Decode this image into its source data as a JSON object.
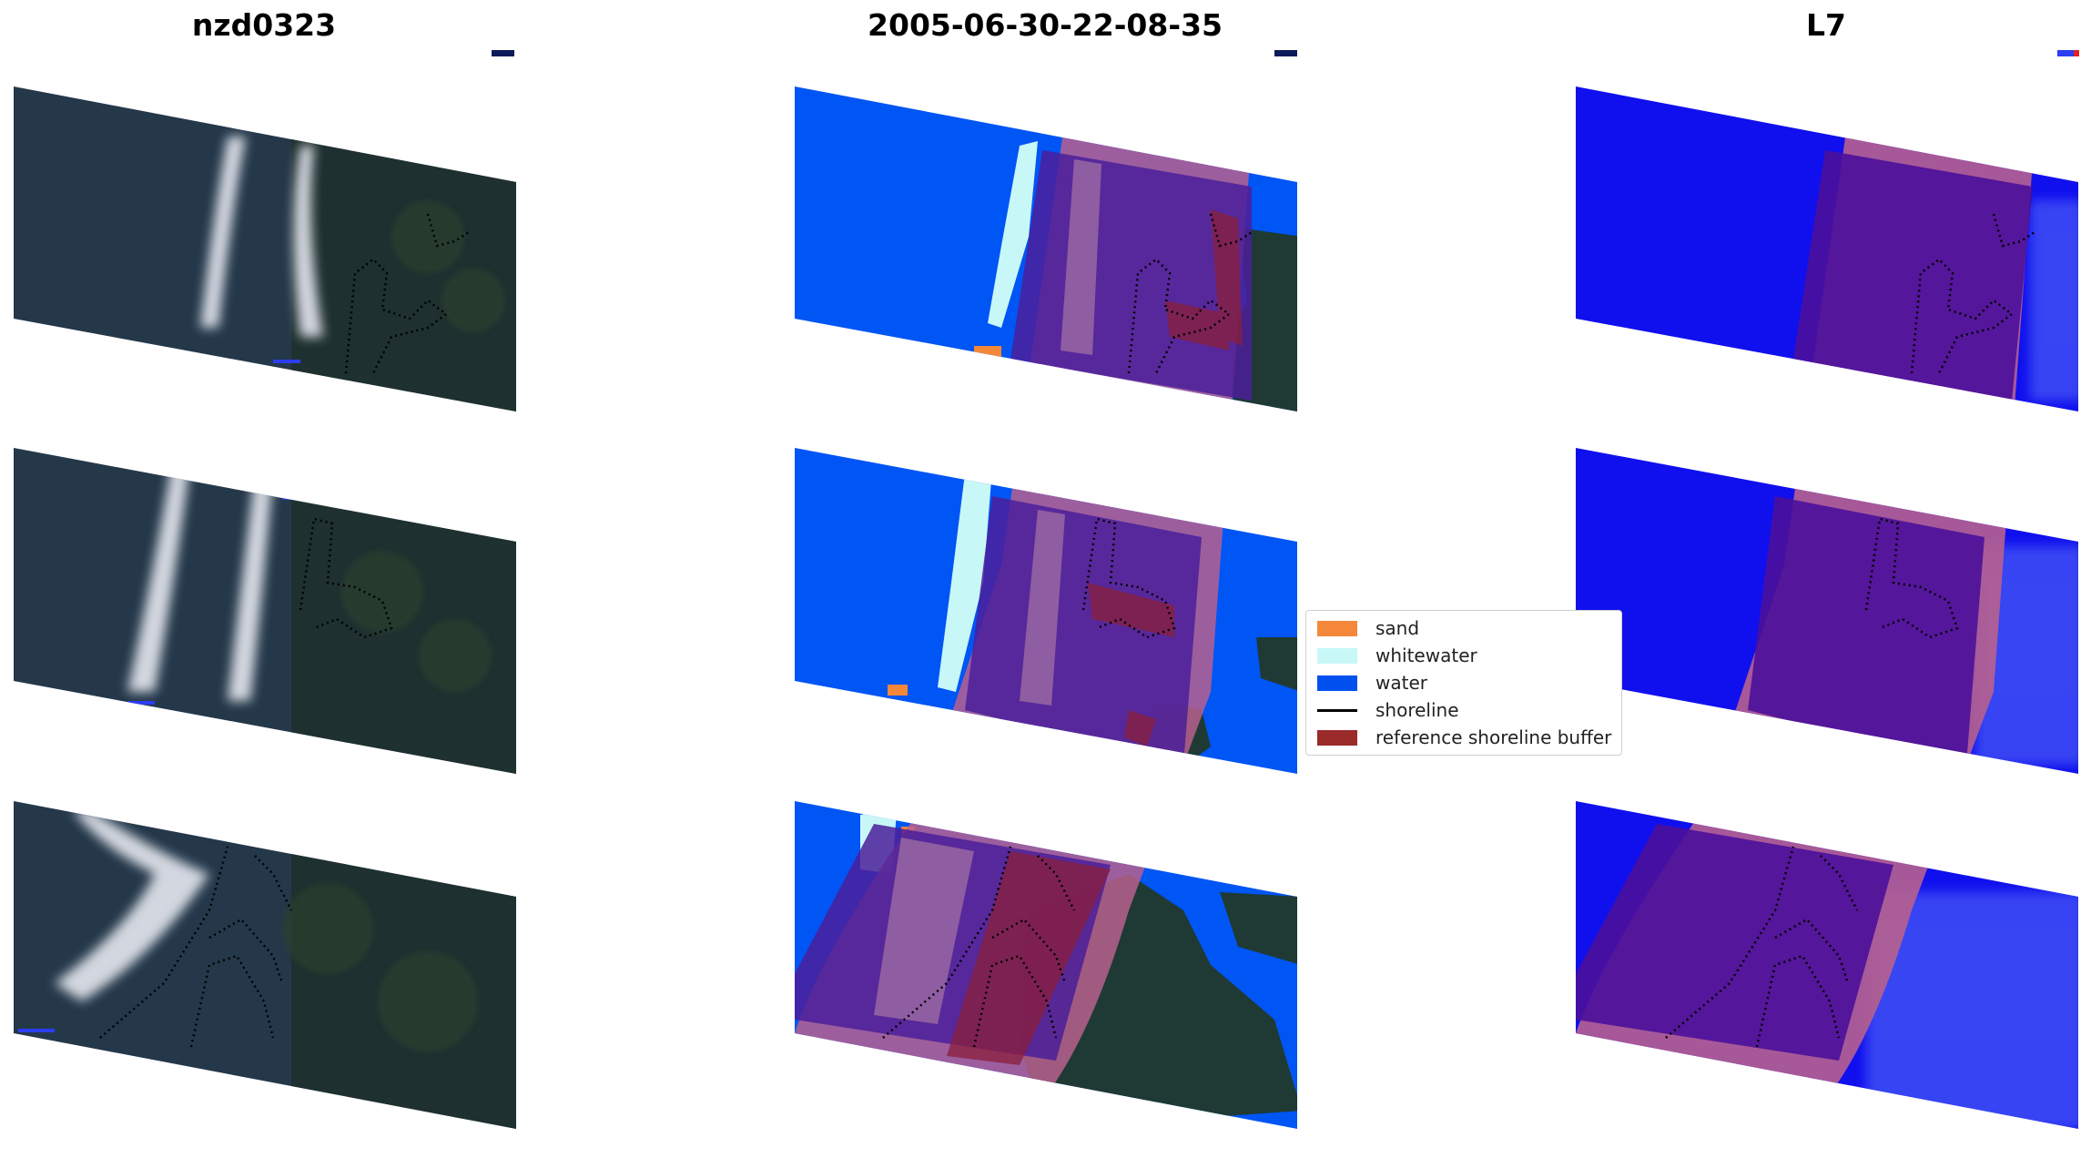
{
  "panels": [
    {
      "title": "nzd0323"
    },
    {
      "title": "2005-06-30-22-08-35"
    },
    {
      "title": "L7"
    }
  ],
  "legend": {
    "items": [
      {
        "label": "sand",
        "kind": "patch",
        "color": "#f5873a"
      },
      {
        "label": "whitewater",
        "kind": "patch",
        "color": "#c8f7f7"
      },
      {
        "label": "water",
        "kind": "patch",
        "color": "#0050f0"
      },
      {
        "label": "shoreline",
        "kind": "line",
        "color": "#000000"
      },
      {
        "label": "reference shoreline buffer",
        "kind": "patch",
        "color": "#9b2a2a"
      }
    ]
  },
  "colors": {
    "land": "#1e3038",
    "whitewater_rgb": "#d9dde3",
    "water_index": "#1010ee",
    "buffer_overlay": "#b8608e",
    "buffer_inside": "#4b1f9a"
  }
}
